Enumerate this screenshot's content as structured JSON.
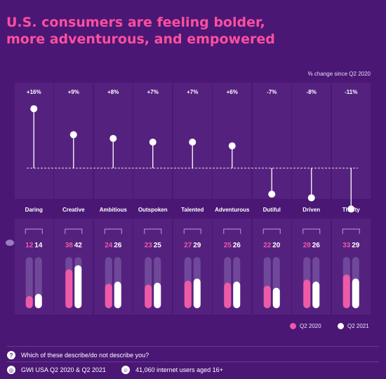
{
  "header": {
    "title_line1": "U.S. consumers are feeling bolder,",
    "title_line2": "more adventurous, and empowered",
    "axis_note": "% change since Q2 2020"
  },
  "colors": {
    "background": "#4a1775",
    "title": "#ff4f9e",
    "q2_2020": "#ee5aa6",
    "q2_2021": "#ffffff",
    "track": "#7a55a3"
  },
  "legend": {
    "q2_2020": "Q2 2020",
    "q2_2021": "Q2 2021"
  },
  "footer": {
    "question": "Which of these describe/do not describe you?",
    "source": "GWI USA Q2 2020 & Q2 2021",
    "sample": "41,060 internet users aged 16+",
    "question_icon": "?",
    "source_icon": "globe-icon",
    "sample_icon": "people-icon"
  },
  "chart_data": [
    {
      "type": "lollipop",
      "categories": [
        "Daring",
        "Creative",
        "Ambitious",
        "Outspoken",
        "Talented",
        "Adventurous",
        "Dutiful",
        "Driven",
        "Thrifty"
      ],
      "values": [
        16,
        9,
        8,
        7,
        7,
        6,
        -7,
        -8,
        -11
      ],
      "labels": [
        "+16%",
        "+9%",
        "+8%",
        "+7%",
        "+7%",
        "+6%",
        "-7%",
        "-8%",
        "-11%"
      ],
      "ylim": [
        -12,
        18
      ]
    },
    {
      "type": "bar",
      "categories": [
        "Daring",
        "Creative",
        "Ambitious",
        "Outspoken",
        "Talented",
        "Adventurous",
        "Dutiful",
        "Driven",
        "Thrifty"
      ],
      "series": [
        {
          "name": "Q2 2020",
          "values": [
            12,
            38,
            24,
            23,
            27,
            25,
            22,
            28,
            33
          ]
        },
        {
          "name": "Q2 2021",
          "values": [
            14,
            42,
            26,
            25,
            29,
            26,
            20,
            26,
            29
          ]
        }
      ],
      "ylim": [
        0,
        50
      ]
    }
  ]
}
